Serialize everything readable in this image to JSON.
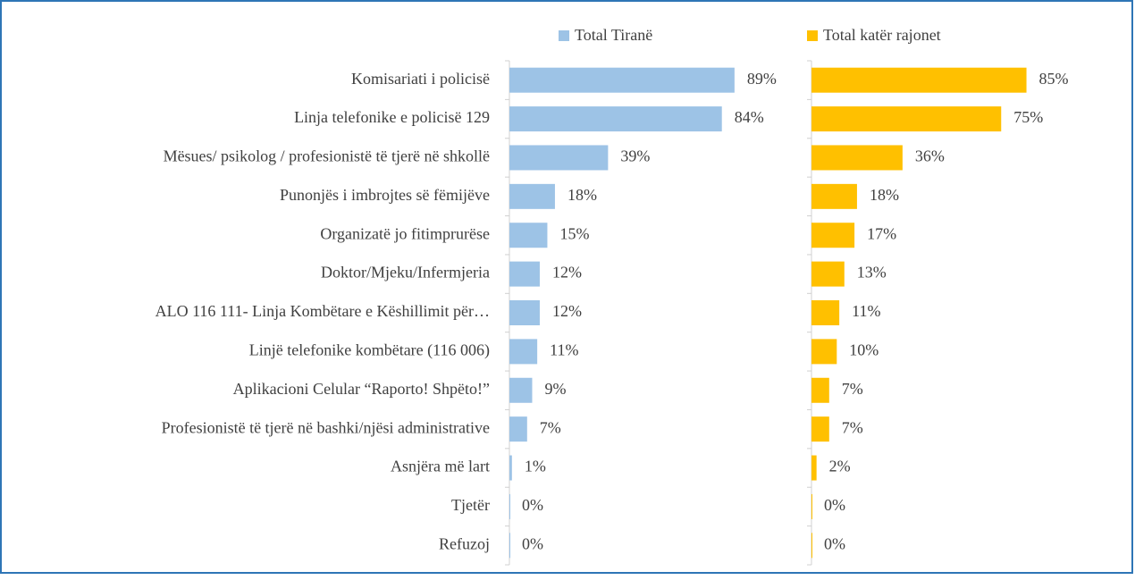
{
  "chart_data": {
    "type": "bar",
    "categories": [
      "Komisariati i policisë",
      "Linja telefonike e policisë 129",
      "Mësues/ psikolog / profesionistë të tjerë në shkollë",
      "Punonjës i imbrojtes së fëmijëve",
      "Organizatë jo fitimprurëse",
      "Doktor/Mjeku/Infermjeria",
      "ALO 116 111- Linja Kombëtare e Këshillimit për…",
      "Linjë telefonike kombëtare (116 006)",
      "Aplikacioni Celular “Raporto! Shpëto!”",
      "Profesionistë të tjerë në bashki/njësi administrative",
      "Asnjëra më lart",
      "Tjetër",
      "Refuzoj"
    ],
    "series": [
      {
        "name": "Total Tiranë",
        "color": "#9dc3e6",
        "values": [
          89,
          84,
          39,
          18,
          15,
          12,
          12,
          11,
          9,
          7,
          1,
          0,
          0
        ],
        "value_labels": [
          "89%",
          "84%",
          "39%",
          "18%",
          "15%",
          "12%",
          "12%",
          "11%",
          "9%",
          "7%",
          "1%",
          "0%",
          "0%"
        ]
      },
      {
        "name": "Total katër rajonet",
        "color": "#ffc000",
        "values": [
          85,
          75,
          36,
          18,
          17,
          13,
          11,
          10,
          7,
          7,
          2,
          0,
          0
        ],
        "value_labels": [
          "85%",
          "75%",
          "36%",
          "18%",
          "17%",
          "13%",
          "11%",
          "10%",
          "7%",
          "7%",
          "2%",
          "0%",
          "0%"
        ]
      }
    ],
    "xlim": [
      0,
      100
    ]
  }
}
